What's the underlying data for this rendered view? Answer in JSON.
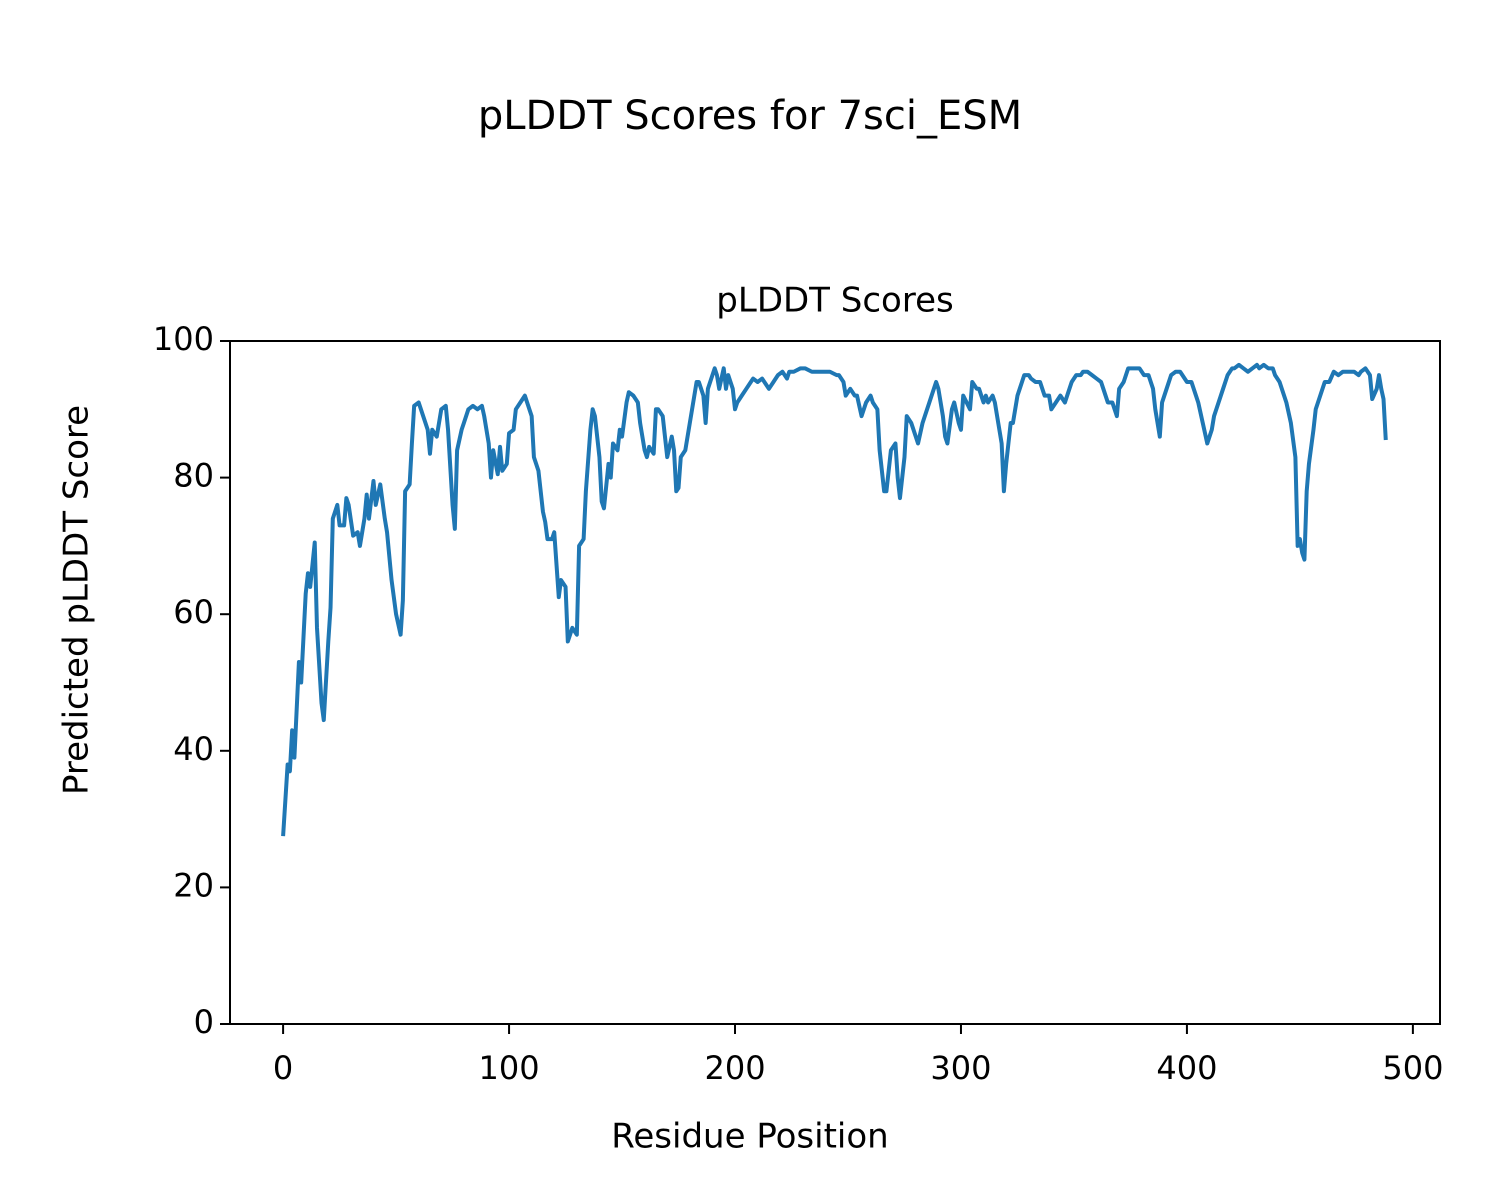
{
  "chart_data": {
    "type": "line",
    "title": "pLDDT Scores for 7sci_ESM",
    "subtitle": "pLDDT Scores",
    "xlabel": "Residue Position",
    "ylabel": "Predicted pLDDT Score",
    "color": "#1f77b4",
    "xlim": [
      -23.5,
      512
    ],
    "xticks": [
      0,
      100,
      200,
      300,
      400,
      500
    ],
    "ylim": [
      0,
      100
    ],
    "yticks": [
      0,
      20,
      40,
      60,
      80,
      100
    ],
    "x": [
      0,
      2,
      3,
      4,
      5,
      7,
      8,
      10,
      11,
      12,
      14,
      15,
      17,
      18,
      20,
      21,
      22,
      24,
      25,
      27,
      28,
      29,
      31,
      33,
      34,
      36,
      37,
      38,
      40,
      41,
      43,
      45,
      46,
      48,
      50,
      52,
      53,
      54,
      56,
      57,
      58,
      60,
      62,
      64,
      65,
      66,
      68,
      70,
      72,
      73,
      75,
      76,
      77,
      79,
      80,
      82,
      84,
      86,
      88,
      89,
      91,
      92,
      93,
      95,
      96,
      97,
      99,
      100,
      102,
      103,
      105,
      107,
      108,
      110,
      111,
      113,
      115,
      116,
      117,
      119,
      120,
      122,
      123,
      125,
      126,
      128,
      130,
      131,
      133,
      134,
      136,
      137,
      138,
      140,
      141,
      142,
      144,
      145,
      146,
      148,
      149,
      150,
      152,
      153,
      155,
      157,
      158,
      160,
      161,
      162,
      164,
      165,
      166,
      168,
      169,
      170,
      172,
      173,
      174,
      175,
      176,
      178,
      180,
      181,
      183,
      184,
      186,
      187,
      188,
      189,
      191,
      192,
      193,
      195,
      196,
      197,
      199,
      200,
      201,
      203,
      205,
      207,
      208,
      210,
      212,
      214,
      215,
      217,
      219,
      221,
      223,
      224,
      226,
      229,
      231,
      234,
      237,
      239,
      242,
      245,
      246,
      248,
      249,
      251,
      253,
      254,
      256,
      258,
      260,
      261,
      263,
      264,
      266,
      267,
      269,
      271,
      272,
      273,
      275,
      276,
      278,
      280,
      281,
      283,
      284,
      286,
      287,
      289,
      290,
      292,
      293,
      294,
      296,
      297,
      299,
      300,
      301,
      304,
      305,
      307,
      308,
      310,
      311,
      312,
      314,
      315,
      317,
      318,
      319,
      320,
      322,
      323,
      325,
      326,
      328,
      330,
      331,
      333,
      335,
      337,
      339,
      340,
      342,
      344,
      346,
      347,
      349,
      351,
      353,
      354,
      356,
      358,
      360,
      362,
      363,
      365,
      367,
      369,
      370,
      372,
      374,
      376,
      378,
      379,
      381,
      383,
      385,
      386,
      388,
      389,
      391,
      393,
      395,
      397,
      398,
      400,
      402,
      404,
      405,
      407,
      409,
      411,
      412,
      414,
      416,
      418,
      420,
      421,
      423,
      425,
      427,
      429,
      431,
      432,
      434,
      436,
      438,
      439,
      441,
      443,
      444,
      446,
      448,
      449,
      450,
      451,
      452,
      453,
      454,
      456,
      457,
      459,
      461,
      463,
      465,
      467,
      469,
      471,
      472,
      474,
      476,
      477,
      479,
      481,
      482,
      484,
      485,
      486,
      487,
      488
    ],
    "values": [
      27.5,
      38,
      37,
      43,
      39,
      53,
      50,
      63,
      66,
      64,
      70.5,
      58,
      47,
      44.5,
      56,
      61,
      74,
      76,
      73,
      73,
      77,
      76,
      71.5,
      72,
      70,
      74,
      77.5,
      74,
      79.5,
      76,
      79,
      74,
      72,
      65,
      60,
      57,
      62,
      78,
      79,
      85,
      90.5,
      91,
      89,
      87,
      83.5,
      87,
      86,
      90,
      90.5,
      87,
      76,
      72.5,
      84,
      87,
      88,
      90,
      90.5,
      90,
      90.5,
      89,
      85,
      80,
      84,
      80.5,
      84.5,
      81,
      82,
      86.5,
      87,
      90,
      91,
      92,
      91,
      89,
      83,
      81,
      75,
      73.5,
      71,
      71,
      72,
      62.5,
      65,
      64,
      56,
      58,
      57,
      70,
      71,
      78,
      87,
      90,
      89,
      83,
      76.5,
      75.5,
      82,
      80,
      85,
      84,
      87,
      86,
      91,
      92.5,
      92,
      91,
      88,
      84,
      83,
      84.5,
      83.5,
      90,
      90,
      89,
      86,
      83,
      86,
      84,
      78,
      78.5,
      83,
      84,
      88,
      90,
      94,
      94,
      92,
      88,
      93,
      94,
      96,
      95,
      93,
      96,
      93,
      95,
      93,
      90,
      91,
      92,
      93,
      94,
      94.5,
      94,
      94.5,
      93.5,
      93,
      94,
      95,
      95.5,
      94.5,
      95.5,
      95.5,
      96,
      96,
      95.5,
      95.5,
      95.5,
      95.5,
      95,
      95,
      94,
      92,
      93,
      92,
      92,
      89,
      91,
      92,
      91,
      90,
      84,
      78,
      78,
      84,
      85,
      80,
      77,
      83,
      89,
      88,
      86,
      85,
      88,
      89,
      91,
      92,
      94,
      93,
      89,
      86,
      85,
      90,
      91,
      88,
      87,
      92,
      90,
      94,
      93,
      93,
      91,
      92,
      91,
      92,
      91,
      87,
      85,
      78,
      82,
      88,
      88,
      92,
      93,
      95,
      95,
      94.5,
      94,
      94,
      92,
      92,
      90,
      91,
      92,
      91,
      92,
      94,
      95,
      95,
      95.5,
      95.5,
      95,
      94.5,
      94,
      93,
      91,
      91,
      89,
      93,
      94,
      96,
      96,
      96,
      96,
      95,
      95,
      93,
      90,
      86,
      91,
      93,
      95,
      95.5,
      95.5,
      95,
      94,
      94,
      92,
      91,
      88,
      85,
      87,
      89,
      91,
      93,
      95,
      96,
      96,
      96.5,
      96,
      95.5,
      96,
      96.5,
      96,
      96.5,
      96,
      96,
      95,
      94,
      92,
      91,
      88,
      83,
      70,
      71,
      69,
      68,
      78,
      82,
      87,
      90,
      92,
      94,
      94,
      95.5,
      95,
      95.5,
      95.5,
      95.5,
      95.5,
      95,
      95.5,
      96,
      95,
      91.5,
      93,
      95,
      93,
      91.5,
      85.5
    ]
  }
}
